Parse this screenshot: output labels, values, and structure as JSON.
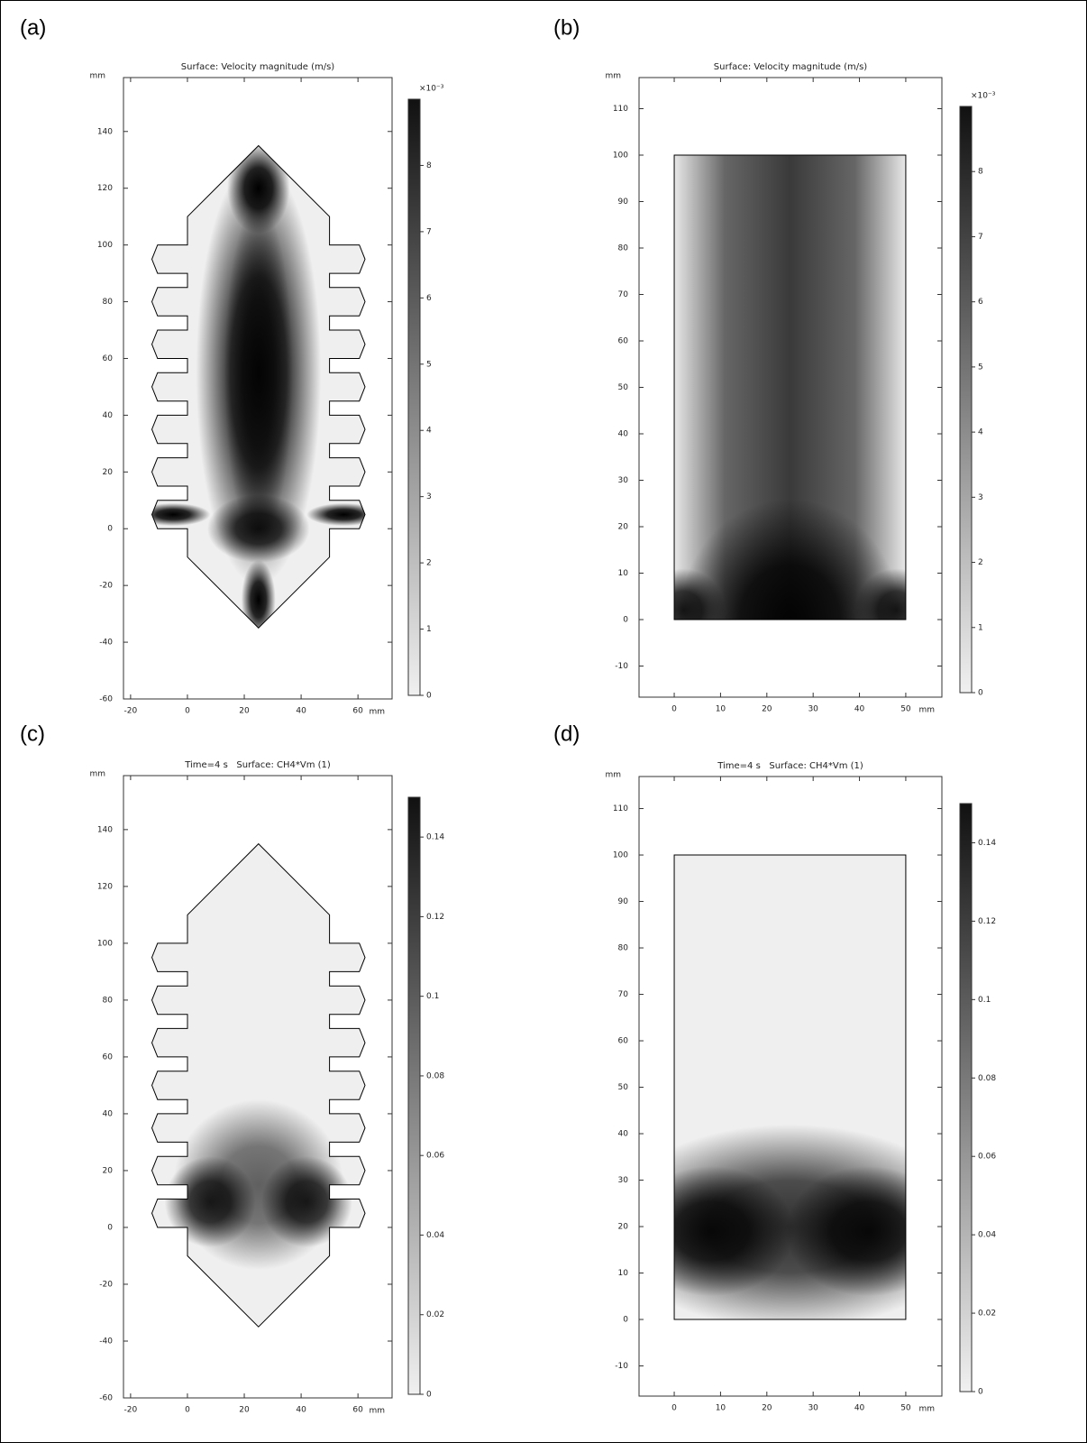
{
  "chart_data": [
    {
      "panel": "(a)",
      "type": "heatmap",
      "title": "Surface: Velocity magnitude (m/s)",
      "x_unit": "mm",
      "y_unit": "mm",
      "xlim": [
        -22.5,
        72
      ],
      "xticks": [
        -20,
        0,
        20,
        40,
        60
      ],
      "ylim": [
        -60,
        159
      ],
      "yticks": [
        -60,
        -40,
        -20,
        0,
        20,
        40,
        60,
        80,
        100,
        120,
        140
      ],
      "colorbar": {
        "lim": [
          0,
          9
        ],
        "ticks": [
          0,
          1,
          2,
          3,
          4,
          5,
          6,
          7,
          8
        ],
        "multiplier": "×10⁻³"
      }
    },
    {
      "panel": "(b)",
      "type": "heatmap",
      "title": "Surface: Velocity magnitude (m/s)",
      "x_unit": "mm",
      "y_unit": "mm",
      "xlim": [
        -7.6,
        57.8
      ],
      "xticks": [
        0,
        10,
        20,
        30,
        40,
        50
      ],
      "ylim": [
        -16.7,
        116.7
      ],
      "yticks": [
        -10,
        0,
        10,
        20,
        30,
        40,
        50,
        60,
        70,
        80,
        90,
        100,
        110
      ],
      "colorbar": {
        "lim": [
          0,
          9
        ],
        "ticks": [
          0,
          1,
          2,
          3,
          4,
          5,
          6,
          7,
          8
        ],
        "multiplier": "×10⁻³"
      }
    },
    {
      "panel": "(c)",
      "type": "heatmap",
      "title": "Time=4 s   Surface: CH4*Vm (1)",
      "x_unit": "mm",
      "y_unit": "mm",
      "xlim": [
        -22.5,
        72
      ],
      "xticks": [
        -20,
        0,
        20,
        40,
        60
      ],
      "ylim": [
        -60,
        159
      ],
      "yticks": [
        -60,
        -40,
        -20,
        0,
        20,
        40,
        60,
        80,
        100,
        120,
        140
      ],
      "colorbar": {
        "lim": [
          0,
          0.15
        ],
        "ticks": [
          0,
          0.02,
          0.04,
          0.06,
          0.08,
          0.1,
          0.12,
          0.14
        ]
      }
    },
    {
      "panel": "(d)",
      "type": "heatmap",
      "title": "Time=4 s   Surface: CH4*Vm (1)",
      "x_unit": "mm",
      "y_unit": "mm",
      "xlim": [
        -7.6,
        57.8
      ],
      "xticks": [
        0,
        10,
        20,
        30,
        40,
        50
      ],
      "ylim": [
        -16.5,
        116.9
      ],
      "yticks": [
        -10,
        0,
        10,
        20,
        30,
        40,
        50,
        60,
        70,
        80,
        90,
        100,
        110
      ],
      "colorbar": {
        "lim": [
          0,
          0.15
        ],
        "ticks": [
          0,
          0.02,
          0.04,
          0.06,
          0.08,
          0.1,
          0.12,
          0.14
        ]
      }
    }
  ]
}
